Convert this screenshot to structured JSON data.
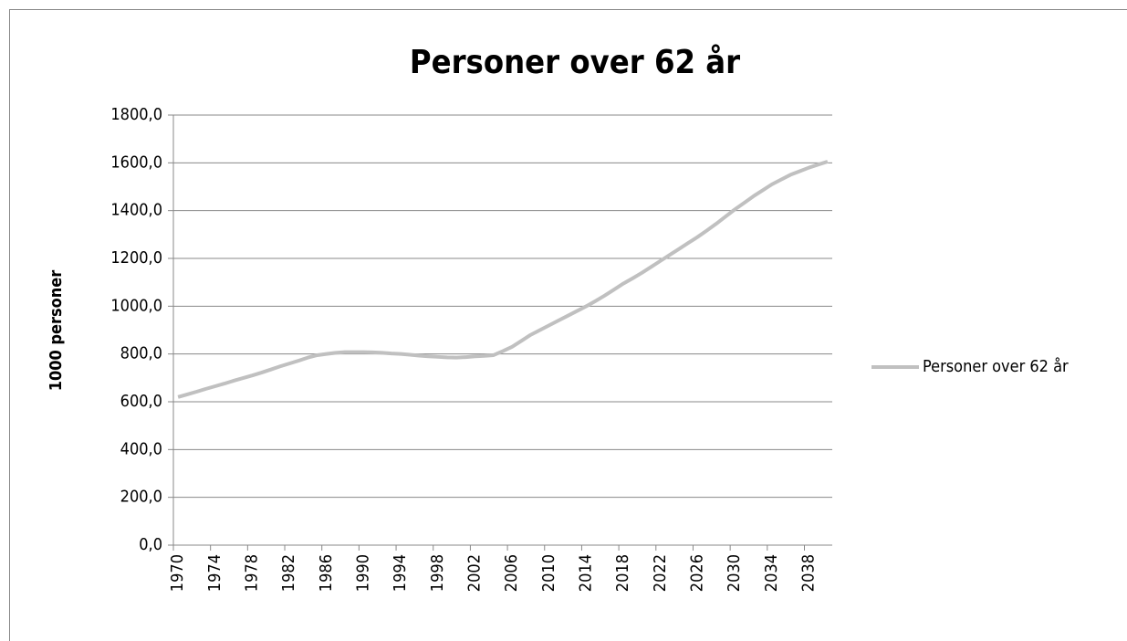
{
  "chart_data": {
    "type": "line",
    "title": "Personer over 62 år",
    "y_label": "1000 personer",
    "categories": [
      "1970",
      null,
      null,
      null,
      "1974",
      null,
      null,
      null,
      "1978",
      null,
      null,
      null,
      "1982",
      null,
      null,
      null,
      "1986",
      null,
      null,
      null,
      "1990",
      null,
      null,
      null,
      "1994",
      null,
      null,
      null,
      "1998",
      null,
      null,
      null,
      "2002",
      null,
      null,
      null,
      "2006",
      null,
      null,
      null,
      "2010",
      null,
      null,
      null,
      "2014",
      null,
      null,
      null,
      "2018",
      null,
      null,
      null,
      "2022",
      null,
      null,
      null,
      "2026",
      null,
      null,
      null,
      "2030",
      null,
      null,
      null,
      "2034",
      null,
      null,
      null,
      "2038",
      null,
      null
    ],
    "series": [
      {
        "name": "Personer over 62 år",
        "color": "#c0c0c0",
        "values": [
          620,
          631,
          642,
          654,
          665,
          676,
          688,
          699,
          710,
          722,
          735,
          748,
          760,
          772,
          785,
          795,
          800,
          805,
          808,
          808,
          808,
          807,
          805,
          802,
          800,
          797,
          793,
          790,
          788,
          786,
          785,
          787,
          790,
          792,
          795,
          812,
          830,
          855,
          880,
          900,
          920,
          940,
          960,
          980,
          1000,
          1022,
          1045,
          1070,
          1095,
          1117,
          1140,
          1165,
          1190,
          1215,
          1240,
          1265,
          1290,
          1317,
          1345,
          1375,
          1405,
          1432,
          1460,
          1485,
          1510,
          1530,
          1550,
          1565,
          1580,
          1593,
          1605
        ]
      }
    ],
    "ylim": [
      0,
      1800
    ],
    "yticks": [
      {
        "value": 0,
        "label": "0,0"
      },
      {
        "value": 200,
        "label": "200,0"
      },
      {
        "value": 400,
        "label": "400,0"
      },
      {
        "value": 600,
        "label": "600,0"
      },
      {
        "value": 800,
        "label": "800,0"
      },
      {
        "value": 1000,
        "label": "1000,0"
      },
      {
        "value": 1200,
        "label": "1200,0"
      },
      {
        "value": 1400,
        "label": "1400,0"
      },
      {
        "value": 1600,
        "label": "1600,0"
      },
      {
        "value": 1800,
        "label": "1800,0"
      }
    ],
    "grid": true,
    "legend": "right"
  }
}
